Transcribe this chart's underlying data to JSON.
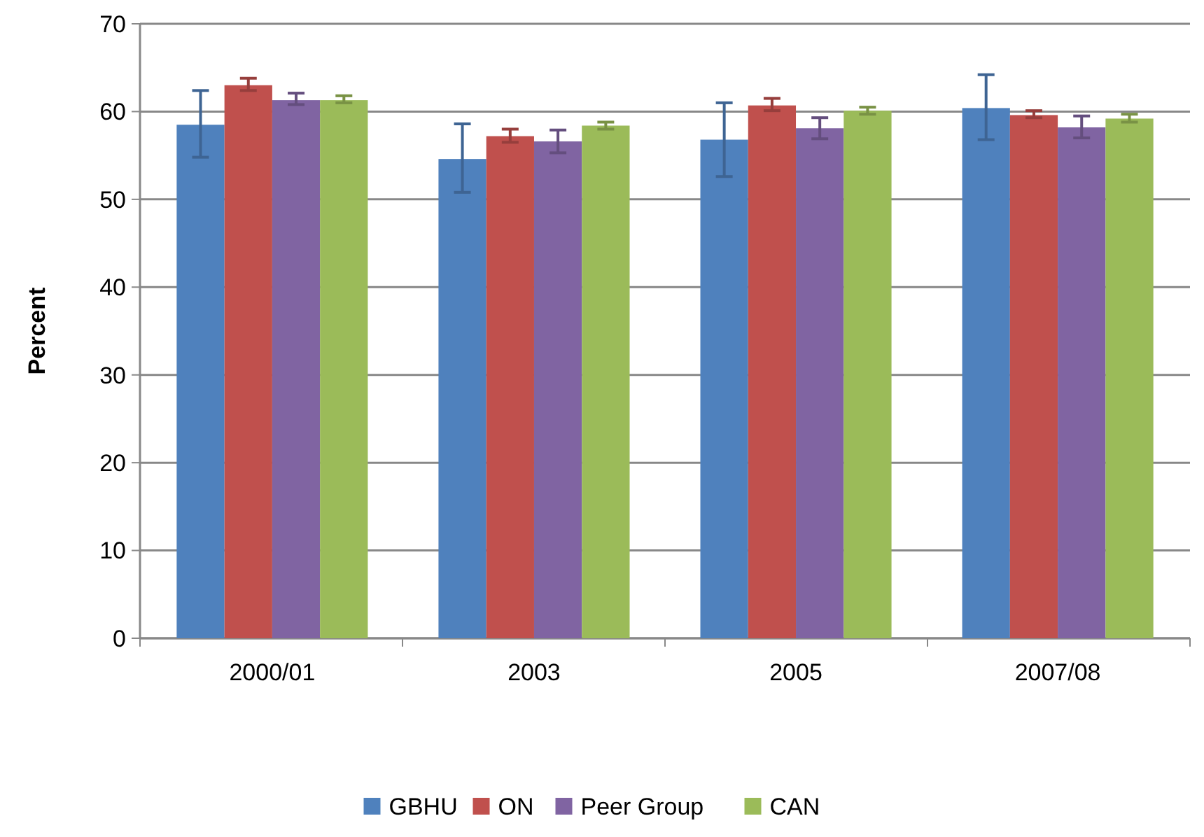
{
  "chart_data": {
    "type": "bar",
    "ylabel": "Percent",
    "categories": [
      "2000/01",
      "2003",
      "2005",
      "2007/08"
    ],
    "series": [
      {
        "name": "GBHU",
        "color": "#4f81bd",
        "values": [
          58.5,
          54.6,
          56.8,
          60.4
        ],
        "errors": [
          [
            54.8,
            62.4
          ],
          [
            50.8,
            58.6
          ],
          [
            52.6,
            61.0
          ],
          [
            56.8,
            64.2
          ]
        ]
      },
      {
        "name": "ON",
        "color": "#c0504d",
        "values": [
          63.0,
          57.2,
          60.7,
          59.6
        ],
        "errors": [
          [
            62.4,
            63.8
          ],
          [
            56.5,
            58.0
          ],
          [
            60.1,
            61.5
          ],
          [
            59.3,
            60.1
          ]
        ]
      },
      {
        "name": "Peer Group",
        "color": "#8064a2",
        "values": [
          61.3,
          56.6,
          58.1,
          58.2
        ],
        "errors": [
          [
            60.8,
            62.1
          ],
          [
            55.3,
            57.9
          ],
          [
            56.9,
            59.3
          ],
          [
            57.0,
            59.5
          ]
        ]
      },
      {
        "name": "CAN",
        "color": "#9bbb59",
        "values": [
          61.3,
          58.4,
          60.1,
          59.2
        ],
        "errors": [
          [
            61.0,
            61.8
          ],
          [
            58.0,
            58.8
          ],
          [
            59.7,
            60.5
          ],
          [
            58.8,
            59.7
          ]
        ]
      }
    ],
    "ylim": [
      0,
      70
    ],
    "yticks": [
      0,
      10,
      20,
      30,
      40,
      50,
      60,
      70
    ],
    "grid": "y",
    "legend": "bottom"
  }
}
